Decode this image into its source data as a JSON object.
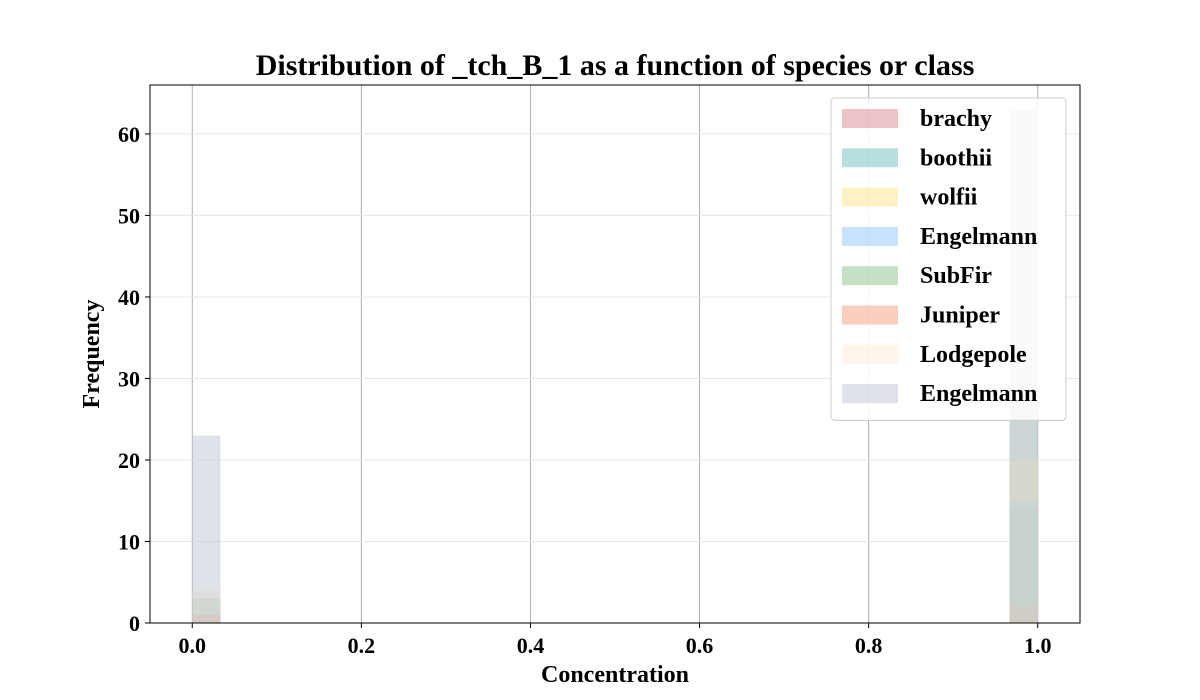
{
  "chart_data": {
    "type": "bar",
    "title": "Distribution of _tch_B_1 as a function of species or class",
    "xlabel": "Concentration",
    "ylabel": "Frequency",
    "xlim": [
      -0.05,
      1.05
    ],
    "ylim": [
      0,
      66
    ],
    "xticks": [
      0.0,
      0.2,
      0.4,
      0.6,
      0.8,
      1.0
    ],
    "xtick_labels": [
      "0.0",
      "0.2",
      "0.4",
      "0.6",
      "0.8",
      "1.0"
    ],
    "yticks": [
      0,
      10,
      20,
      30,
      40,
      50,
      60
    ],
    "ytick_labels": [
      "0",
      "10",
      "20",
      "30",
      "40",
      "50",
      "60"
    ],
    "grid": true,
    "legend_position": "top-right",
    "bin_width": 0.0333,
    "bins": [
      0.0,
      1.0
    ],
    "series": [
      {
        "name": "brachy",
        "color": "#d9898f",
        "values": [
          1,
          1
        ]
      },
      {
        "name": "boothii",
        "color": "#6fbfbf",
        "values": [
          0,
          29
        ]
      },
      {
        "name": "wolfii",
        "color": "#fde68a",
        "values": [
          0,
          20
        ]
      },
      {
        "name": "Engelmann",
        "color": "#90c5f8",
        "values": [
          0,
          15
        ]
      },
      {
        "name": "SubFir",
        "color": "#8fc48f",
        "values": [
          3,
          14
        ]
      },
      {
        "name": "Juniper",
        "color": "#f8a07e",
        "values": [
          1,
          2
        ]
      },
      {
        "name": "Lodgepole",
        "color": "#fdebd8",
        "values": [
          4,
          63
        ]
      },
      {
        "name": "Engelmann",
        "color": "#c0c7d4",
        "values": [
          23,
          63
        ]
      }
    ]
  }
}
